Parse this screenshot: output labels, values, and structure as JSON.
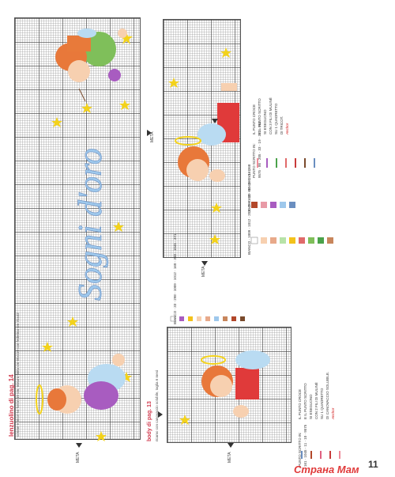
{
  "sheet1": {
    "title": "lenzuolino di pag. 14",
    "subtitle": "cotone e tricot 54 fori in 10 cm, misura finita cm 65x110 con federina cm 31x42",
    "phrase": "Sogni d'oro",
    "meta": "META"
  },
  "sheet2": {
    "title": "body di pag. 13",
    "subtitle": "ricamo con canovaccio solubile, taglia 6 mesi",
    "meta": "META",
    "legend_cross": [
      {
        "code": "BIANCO",
        "color": "#ffffff"
      },
      {
        "code": "33",
        "color": "#a85cc0"
      },
      {
        "code": "298",
        "color": "#f3c21b"
      },
      {
        "code": "1009",
        "color": "#f7d0b0"
      },
      {
        "code": "1012",
        "color": "#e8a98a"
      },
      {
        "code": "160",
        "color": "#9ec8ec"
      },
      {
        "code": "368",
        "color": "#c8865c"
      },
      {
        "code": "1045",
        "color": "#b2472a"
      },
      {
        "code": "371",
        "color": "#7a4a2c"
      }
    ],
    "backstitch_title": "PUNTO SCRITTO IN:",
    "backstitch": [
      {
        "code": "161",
        "color": "#6a8ec0"
      },
      {
        "code": "1045",
        "color": "#b2472a"
      },
      {
        "code": "11",
        "color": "#e06080"
      },
      {
        "code": "10",
        "color": "#c83a3a"
      },
      {
        "code": "9575",
        "color": "#ef8d9b"
      }
    ],
    "note": [
      "IL PUNTO CROCE",
      "E IL PUNTO SCRITTO",
      "SI ESEGUONO",
      "CON 2 FILI DI MULINÉ",
      "SU 1 QUADRETTO",
      "DI CANOVACCIO SOLUBILE."
    ],
    "brand": "Anchor"
  },
  "sheet3": {
    "meta": "META",
    "legend_cross": [
      {
        "code": "BIANCO",
        "color": "#ffffff"
      },
      {
        "code": "1009",
        "color": "#f7d0b0"
      },
      {
        "code": "1012",
        "color": "#e8a98a"
      },
      {
        "code": "203",
        "color": "#b7e3a8"
      },
      {
        "code": "298",
        "color": "#f3c21b"
      },
      {
        "code": "33",
        "color": "#e06a6a"
      },
      {
        "code": "1043",
        "color": "#7fbf5a"
      },
      {
        "code": "241",
        "color": "#4aa24a"
      },
      {
        "code": "368",
        "color": "#c8865c"
      }
    ],
    "legend_cross2": [
      {
        "code": "1045",
        "color": "#b2472a"
      },
      {
        "code": "103",
        "color": "#e89aa6"
      },
      {
        "code": "86",
        "color": "#a85cc0"
      },
      {
        "code": "160",
        "color": "#9ec8ec"
      },
      {
        "code": "161",
        "color": "#6a8ec0"
      }
    ],
    "backstitch_title": "PUNTO SCRITTO IN:",
    "backstitch": [
      {
        "code": "9575",
        "color": "#ef8d9b"
      },
      {
        "code": "86",
        "color": "#a85cc0"
      },
      {
        "code": "205",
        "color": "#4aa24a"
      },
      {
        "code": "33",
        "color": "#e06a6a"
      },
      {
        "code": "19",
        "color": "#c83a3a"
      },
      {
        "code": "371",
        "color": "#7a4a2c"
      },
      {
        "code": "161",
        "color": "#6a8ec0"
      }
    ],
    "note": [
      "IL PUNTO CROCE",
      "E IL PUNTO SCRITTO",
      "SI ESEGUONO",
      "CON 3 FILI DI MULINÉ",
      "SU 1 QUADRETTO",
      "DI TRICOT."
    ],
    "brand": "Anchor"
  },
  "page_number": "11",
  "watermark": "Страна Мам"
}
